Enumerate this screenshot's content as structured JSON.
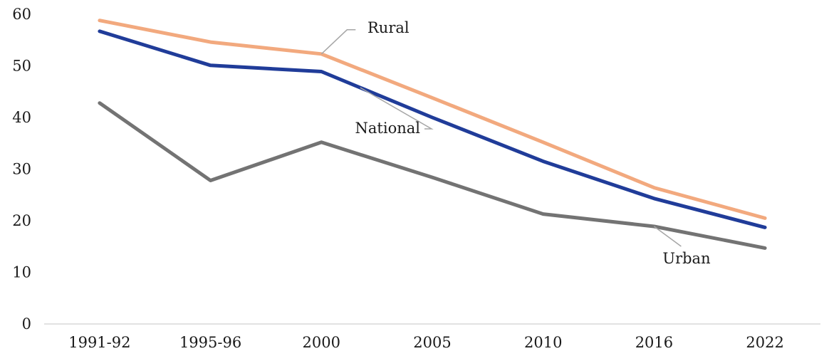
{
  "chart_data": {
    "type": "line",
    "title": "",
    "xlabel": "",
    "ylabel": "",
    "categories": [
      "1991-92",
      "1995-96",
      "2000",
      "2005",
      "2010",
      "2016",
      "2022"
    ],
    "ylim": [
      0,
      60
    ],
    "yticks": [
      0,
      10,
      20,
      30,
      40,
      50,
      60
    ],
    "grid": false,
    "legend": "none",
    "series": [
      {
        "name": "Rural",
        "color": "#F2A97E",
        "values": [
          58.8,
          54.6,
          52.3,
          43.8,
          35.2,
          26.4,
          20.5
        ]
      },
      {
        "name": "National",
        "color": "#203C99",
        "values": [
          56.7,
          50.1,
          48.9,
          40.0,
          31.5,
          24.3,
          18.7
        ]
      },
      {
        "name": "Urban",
        "color": "#737373",
        "values": [
          42.8,
          27.8,
          35.2,
          28.4,
          21.3,
          18.9,
          14.7
        ]
      }
    ]
  }
}
